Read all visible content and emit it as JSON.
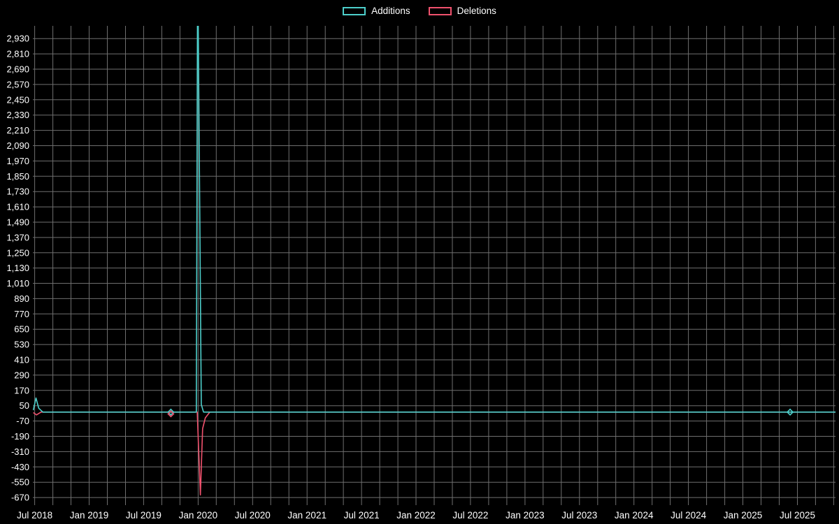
{
  "legend": {
    "items": [
      {
        "label": "Additions",
        "color": "#4dcfcb"
      },
      {
        "label": "Deletions",
        "color": "#f0516d"
      }
    ]
  },
  "chart_data": {
    "type": "line",
    "title": "",
    "background_color": "#000000",
    "grid_color": "#6f6f6f",
    "text_color": "#ffffff",
    "x_axis": {
      "range": [
        -0.2,
        88.2
      ],
      "grid_every": 2,
      "tick_positions": [
        0,
        6,
        12,
        18,
        24,
        30,
        36,
        42,
        48,
        54,
        60,
        66,
        72,
        78,
        84
      ],
      "tick_labels": [
        "Jul 2018",
        "Jan 2019",
        "Jul 2019",
        "Jan 2020",
        "Jul 2020",
        "Jan 2021",
        "Jul 2021",
        "Jan 2022",
        "Jul 2022",
        "Jan 2023",
        "Jul 2023",
        "Jan 2024",
        "Jul 2024",
        "Jan 2025",
        "Jul 2025"
      ]
    },
    "y_axis": {
      "range": [
        -730,
        3030
      ],
      "tick_values": [
        -670,
        -550,
        -430,
        -310,
        -190,
        -70,
        50,
        170,
        290,
        410,
        530,
        650,
        770,
        890,
        1010,
        1130,
        1250,
        1370,
        1490,
        1610,
        1730,
        1850,
        1970,
        2090,
        2210,
        2330,
        2450,
        2570,
        2690,
        2810,
        2930
      ],
      "tick_labels": [
        "-670",
        "-550",
        "-430",
        "-310",
        "-190",
        "-70",
        "50",
        "170",
        "290",
        "410",
        "530",
        "650",
        "770",
        "890",
        "1,010",
        "1,130",
        "1,250",
        "1,370",
        "1,490",
        "1,610",
        "1,730",
        "1,850",
        "1,970",
        "2,090",
        "2,210",
        "2,330",
        "2,450",
        "2,570",
        "2,690",
        "2,810",
        "2,930"
      ]
    },
    "series": [
      {
        "name": "Additions",
        "color": "#4dcfcb",
        "points": [
          [
            -0.15,
            15
          ],
          [
            0.15,
            110
          ],
          [
            0.45,
            30
          ],
          [
            0.9,
            0
          ],
          [
            17.8,
            0
          ],
          [
            17.95,
            3600
          ],
          [
            18.15,
            1850
          ],
          [
            18.35,
            60
          ],
          [
            18.6,
            0
          ],
          [
            88.2,
            0
          ]
        ],
        "markers": [
          [
            15,
            0
          ],
          [
            83.2,
            0
          ]
        ]
      },
      {
        "name": "Deletions",
        "color": "#f0516d",
        "points": [
          [
            -0.15,
            -4
          ],
          [
            0.2,
            -22
          ],
          [
            0.7,
            0
          ],
          [
            17.9,
            0
          ],
          [
            18.25,
            -650
          ],
          [
            18.5,
            -130
          ],
          [
            18.8,
            -45
          ],
          [
            19.3,
            0
          ],
          [
            88.2,
            0
          ]
        ],
        "markers": [
          [
            15,
            -14
          ]
        ]
      }
    ]
  }
}
